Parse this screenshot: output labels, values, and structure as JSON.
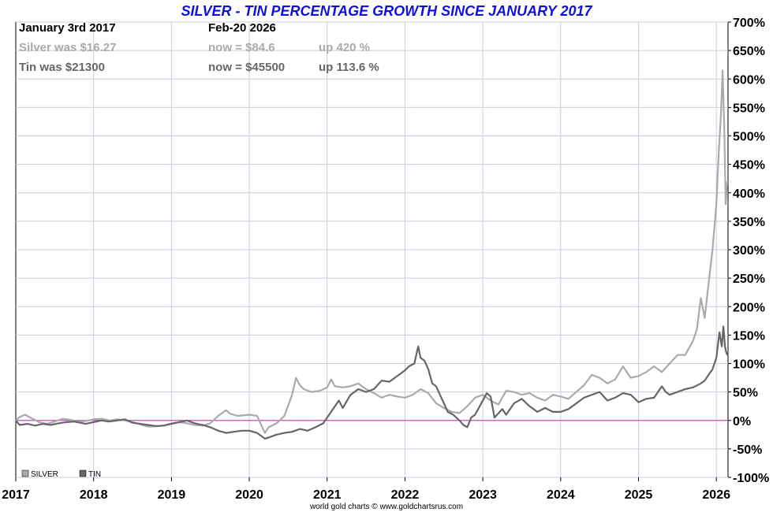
{
  "chart_data": {
    "type": "line",
    "title": "SILVER - TIN PERCENTAGE GROWTH SINCE JANUARY 2017",
    "info": {
      "start_label": "January 3rd 2017",
      "end_label": "Feb-20  2026",
      "silver_was": "Silver was $16.27",
      "silver_now": "now = $84.6",
      "silver_up": "up 420 %",
      "tin_was": "Tin was $21300",
      "tin_now": "now = $45500",
      "tin_up": "up 113.6 %"
    },
    "x_ticks": [
      "2017",
      "2018",
      "2019",
      "2020",
      "2021",
      "2022",
      "2023",
      "2024",
      "2025",
      "2026"
    ],
    "y_ticks": [
      "700%",
      "650%",
      "600%",
      "550%",
      "500%",
      "450%",
      "400%",
      "350%",
      "300%",
      "250%",
      "200%",
      "150%",
      "100%",
      "50%",
      "0%",
      "-50%",
      "-100%"
    ],
    "ylim": [
      -100,
      700
    ],
    "xlim": [
      2017.0,
      2026.15
    ],
    "grid": true,
    "legend": {
      "position": "bottom-left",
      "items": [
        "SILVER",
        "TIN"
      ]
    },
    "credit": "world gold charts © www.goldchartsrus.com",
    "colors": {
      "silver": "#aaaaaa",
      "tin": "#666666",
      "zero_line": "#cc44cc",
      "grid": "#ccccdd",
      "title": "#1010dd"
    },
    "series": [
      {
        "name": "SILVER",
        "color": "#aaaaaa",
        "points": [
          [
            2017.0,
            0
          ],
          [
            2017.05,
            6
          ],
          [
            2017.12,
            10
          ],
          [
            2017.2,
            4
          ],
          [
            2017.3,
            -3
          ],
          [
            2017.4,
            -6
          ],
          [
            2017.5,
            -2
          ],
          [
            2017.6,
            3
          ],
          [
            2017.7,
            1
          ],
          [
            2017.8,
            -2
          ],
          [
            2017.9,
            -1
          ],
          [
            2018.0,
            2
          ],
          [
            2018.1,
            3
          ],
          [
            2018.2,
            0
          ],
          [
            2018.3,
            2
          ],
          [
            2018.4,
            0
          ],
          [
            2018.5,
            -3
          ],
          [
            2018.6,
            -7
          ],
          [
            2018.7,
            -11
          ],
          [
            2018.8,
            -10
          ],
          [
            2018.9,
            -9
          ],
          [
            2019.0,
            -5
          ],
          [
            2019.1,
            -3
          ],
          [
            2019.2,
            -5
          ],
          [
            2019.3,
            -8
          ],
          [
            2019.4,
            -9
          ],
          [
            2019.5,
            -5
          ],
          [
            2019.6,
            8
          ],
          [
            2019.7,
            18
          ],
          [
            2019.75,
            12
          ],
          [
            2019.85,
            8
          ],
          [
            2020.0,
            10
          ],
          [
            2020.1,
            8
          ],
          [
            2020.2,
            -22
          ],
          [
            2020.25,
            -12
          ],
          [
            2020.35,
            -5
          ],
          [
            2020.45,
            8
          ],
          [
            2020.55,
            45
          ],
          [
            2020.6,
            75
          ],
          [
            2020.65,
            62
          ],
          [
            2020.7,
            55
          ],
          [
            2020.8,
            50
          ],
          [
            2020.9,
            52
          ],
          [
            2021.0,
            58
          ],
          [
            2021.05,
            72
          ],
          [
            2021.1,
            60
          ],
          [
            2021.2,
            58
          ],
          [
            2021.3,
            60
          ],
          [
            2021.4,
            65
          ],
          [
            2021.5,
            55
          ],
          [
            2021.6,
            48
          ],
          [
            2021.7,
            40
          ],
          [
            2021.8,
            45
          ],
          [
            2021.9,
            42
          ],
          [
            2022.0,
            40
          ],
          [
            2022.1,
            45
          ],
          [
            2022.2,
            55
          ],
          [
            2022.3,
            48
          ],
          [
            2022.4,
            30
          ],
          [
            2022.5,
            22
          ],
          [
            2022.6,
            15
          ],
          [
            2022.7,
            13
          ],
          [
            2022.8,
            25
          ],
          [
            2022.9,
            40
          ],
          [
            2023.0,
            45
          ],
          [
            2023.1,
            35
          ],
          [
            2023.2,
            28
          ],
          [
            2023.3,
            52
          ],
          [
            2023.4,
            50
          ],
          [
            2023.5,
            45
          ],
          [
            2023.6,
            48
          ],
          [
            2023.7,
            40
          ],
          [
            2023.8,
            35
          ],
          [
            2023.9,
            45
          ],
          [
            2024.0,
            42
          ],
          [
            2024.1,
            38
          ],
          [
            2024.2,
            50
          ],
          [
            2024.3,
            62
          ],
          [
            2024.4,
            80
          ],
          [
            2024.5,
            75
          ],
          [
            2024.6,
            65
          ],
          [
            2024.7,
            72
          ],
          [
            2024.8,
            95
          ],
          [
            2024.9,
            75
          ],
          [
            2025.0,
            78
          ],
          [
            2025.1,
            85
          ],
          [
            2025.2,
            95
          ],
          [
            2025.3,
            85
          ],
          [
            2025.4,
            100
          ],
          [
            2025.5,
            115
          ],
          [
            2025.6,
            115
          ],
          [
            2025.7,
            140
          ],
          [
            2025.75,
            160
          ],
          [
            2025.8,
            215
          ],
          [
            2025.85,
            180
          ],
          [
            2025.9,
            240
          ],
          [
            2025.95,
            300
          ],
          [
            2026.0,
            380
          ],
          [
            2026.03,
            470
          ],
          [
            2026.06,
            540
          ],
          [
            2026.08,
            615
          ],
          [
            2026.1,
            520
          ],
          [
            2026.12,
            380
          ],
          [
            2026.14,
            420
          ]
        ]
      },
      {
        "name": "TIN",
        "color": "#666666",
        "points": [
          [
            2017.0,
            0
          ],
          [
            2017.05,
            -8
          ],
          [
            2017.15,
            -6
          ],
          [
            2017.25,
            -9
          ],
          [
            2017.35,
            -6
          ],
          [
            2017.45,
            -8
          ],
          [
            2017.55,
            -5
          ],
          [
            2017.65,
            -3
          ],
          [
            2017.75,
            -2
          ],
          [
            2017.9,
            -6
          ],
          [
            2018.0,
            -3
          ],
          [
            2018.1,
            0
          ],
          [
            2018.2,
            -2
          ],
          [
            2018.3,
            0
          ],
          [
            2018.4,
            2
          ],
          [
            2018.5,
            -4
          ],
          [
            2018.6,
            -6
          ],
          [
            2018.7,
            -8
          ],
          [
            2018.8,
            -10
          ],
          [
            2018.9,
            -9
          ],
          [
            2019.0,
            -6
          ],
          [
            2019.1,
            -3
          ],
          [
            2019.2,
            0
          ],
          [
            2019.3,
            -5
          ],
          [
            2019.4,
            -8
          ],
          [
            2019.5,
            -12
          ],
          [
            2019.6,
            -18
          ],
          [
            2019.7,
            -22
          ],
          [
            2019.8,
            -20
          ],
          [
            2019.9,
            -18
          ],
          [
            2020.0,
            -18
          ],
          [
            2020.1,
            -22
          ],
          [
            2020.2,
            -32
          ],
          [
            2020.25,
            -30
          ],
          [
            2020.35,
            -25
          ],
          [
            2020.45,
            -22
          ],
          [
            2020.55,
            -20
          ],
          [
            2020.65,
            -15
          ],
          [
            2020.75,
            -18
          ],
          [
            2020.85,
            -12
          ],
          [
            2020.95,
            -5
          ],
          [
            2021.0,
            5
          ],
          [
            2021.1,
            25
          ],
          [
            2021.15,
            35
          ],
          [
            2021.2,
            22
          ],
          [
            2021.3,
            45
          ],
          [
            2021.4,
            55
          ],
          [
            2021.5,
            50
          ],
          [
            2021.6,
            55
          ],
          [
            2021.7,
            70
          ],
          [
            2021.8,
            68
          ],
          [
            2021.9,
            78
          ],
          [
            2022.0,
            88
          ],
          [
            2022.05,
            95
          ],
          [
            2022.12,
            100
          ],
          [
            2022.17,
            130
          ],
          [
            2022.2,
            110
          ],
          [
            2022.25,
            105
          ],
          [
            2022.3,
            90
          ],
          [
            2022.35,
            65
          ],
          [
            2022.4,
            60
          ],
          [
            2022.5,
            30
          ],
          [
            2022.55,
            15
          ],
          [
            2022.62,
            10
          ],
          [
            2022.7,
            0
          ],
          [
            2022.75,
            -8
          ],
          [
            2022.8,
            -12
          ],
          [
            2022.85,
            5
          ],
          [
            2022.9,
            10
          ],
          [
            2023.0,
            35
          ],
          [
            2023.05,
            48
          ],
          [
            2023.1,
            42
          ],
          [
            2023.15,
            5
          ],
          [
            2023.25,
            20
          ],
          [
            2023.3,
            10
          ],
          [
            2023.4,
            30
          ],
          [
            2023.5,
            38
          ],
          [
            2023.6,
            25
          ],
          [
            2023.7,
            15
          ],
          [
            2023.8,
            22
          ],
          [
            2023.9,
            15
          ],
          [
            2024.0,
            15
          ],
          [
            2024.1,
            20
          ],
          [
            2024.2,
            30
          ],
          [
            2024.3,
            40
          ],
          [
            2024.4,
            45
          ],
          [
            2024.5,
            50
          ],
          [
            2024.6,
            35
          ],
          [
            2024.7,
            40
          ],
          [
            2024.8,
            48
          ],
          [
            2024.9,
            45
          ],
          [
            2025.0,
            32
          ],
          [
            2025.1,
            38
          ],
          [
            2025.2,
            40
          ],
          [
            2025.3,
            60
          ],
          [
            2025.35,
            50
          ],
          [
            2025.4,
            45
          ],
          [
            2025.5,
            50
          ],
          [
            2025.6,
            55
          ],
          [
            2025.7,
            58
          ],
          [
            2025.8,
            65
          ],
          [
            2025.85,
            70
          ],
          [
            2025.9,
            80
          ],
          [
            2025.95,
            90
          ],
          [
            2026.0,
            110
          ],
          [
            2026.04,
            155
          ],
          [
            2026.07,
            130
          ],
          [
            2026.09,
            165
          ],
          [
            2026.11,
            130
          ],
          [
            2026.13,
            118
          ],
          [
            2026.15,
            114
          ]
        ]
      }
    ]
  }
}
